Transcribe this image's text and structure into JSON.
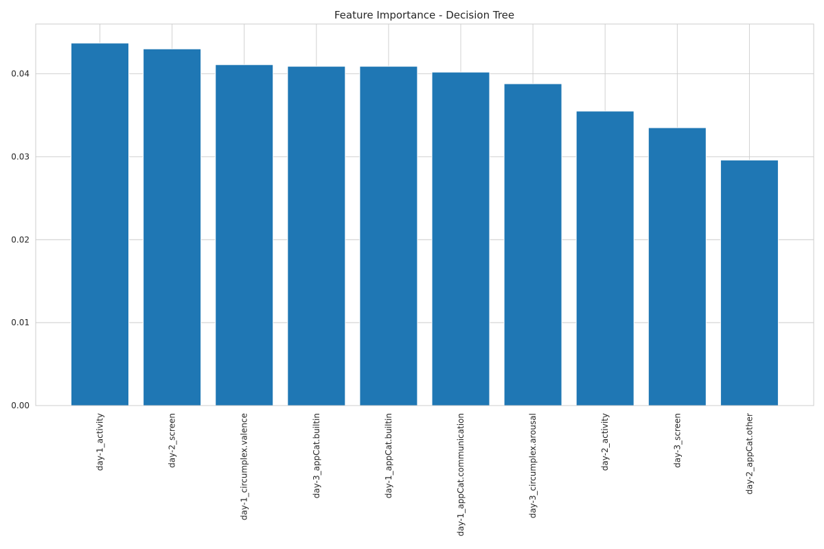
{
  "chart_data": {
    "type": "bar",
    "title": "Feature Importance - Decision Tree",
    "xlabel": "",
    "ylabel": "",
    "categories": [
      "day-1_activity",
      "day-2_screen",
      "day-1_circumplex.valence",
      "day-3_appCat.builtin",
      "day-1_appCat.builtin",
      "day-1_appCat.communication",
      "day-3_circumplex.arousal",
      "day-2_activity",
      "day-3_screen",
      "day-2_appCat.other"
    ],
    "values": [
      0.0437,
      0.043,
      0.0411,
      0.0409,
      0.0409,
      0.0402,
      0.0388,
      0.0355,
      0.0335,
      0.0296
    ],
    "ylim": [
      0,
      0.046
    ],
    "yticks": [
      "0.00",
      "0.01",
      "0.02",
      "0.03",
      "0.04"
    ],
    "grid": true,
    "bar_color": "#1f77b4",
    "bar_edge_color": "#ffffff",
    "grid_color": "#cccccc"
  }
}
